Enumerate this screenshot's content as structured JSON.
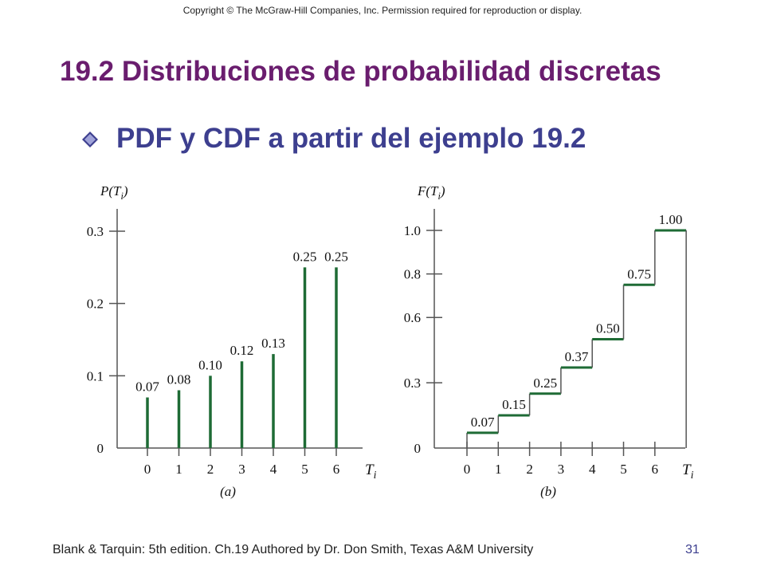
{
  "header": {
    "copyright": "Copyright © The McGraw-Hill Companies, Inc. Permission required for reproduction or display.",
    "title": "19.2 Distribuciones de probabilidad discretas",
    "subtitle": "PDF y CDF a partir del ejemplo 19.2",
    "bullet_icon": "diamond-bullet"
  },
  "footer": {
    "text": "Blank & Tarquin: 5th edition. Ch.19 Authored by Dr. Don Smith, Texas A&M University",
    "page": "31"
  },
  "colors": {
    "title": "#6a1d6e",
    "subtitle": "#3d3f8f",
    "series": "#1e6b35",
    "axis": "#555555"
  },
  "chart_data": [
    {
      "type": "bar",
      "panel_label": "(a)",
      "xlabel": "T",
      "xlabel_sub": "i",
      "ylabel": "P(T",
      "ylabel_sub": "i",
      "ylabel_close": ")",
      "categories": [
        "0",
        "1",
        "2",
        "3",
        "4",
        "5",
        "6"
      ],
      "values": [
        0.07,
        0.08,
        0.1,
        0.12,
        0.13,
        0.25,
        0.25
      ],
      "data_labels": [
        "0.07",
        "0.08",
        "0.10",
        "0.12",
        "0.13",
        "0.25",
        "0.25"
      ],
      "yticks": [
        0,
        0.1,
        0.2,
        0.3
      ],
      "ytick_labels": [
        "0",
        "0.1",
        "0.2",
        "0.3"
      ],
      "ylim": [
        0,
        0.33
      ],
      "grid": false
    },
    {
      "type": "line",
      "step": true,
      "panel_label": "(b)",
      "xlabel": "T",
      "xlabel_sub": "i",
      "ylabel": "F(T",
      "ylabel_sub": "i",
      "ylabel_close": ")",
      "categories": [
        "0",
        "1",
        "2",
        "3",
        "4",
        "5",
        "6"
      ],
      "values": [
        0.07,
        0.15,
        0.25,
        0.37,
        0.5,
        0.75,
        1.0
      ],
      "data_labels": [
        "0.07",
        "0.15",
        "0.25",
        "0.37",
        "0.50",
        "0.75",
        "1.00"
      ],
      "yticks": [
        0,
        0.3,
        0.6,
        0.8,
        1.0
      ],
      "ytick_labels": [
        "0",
        "0.3",
        "0.6",
        "0.8",
        "1.0"
      ],
      "ylim": [
        0,
        1.1
      ],
      "grid": false
    }
  ]
}
